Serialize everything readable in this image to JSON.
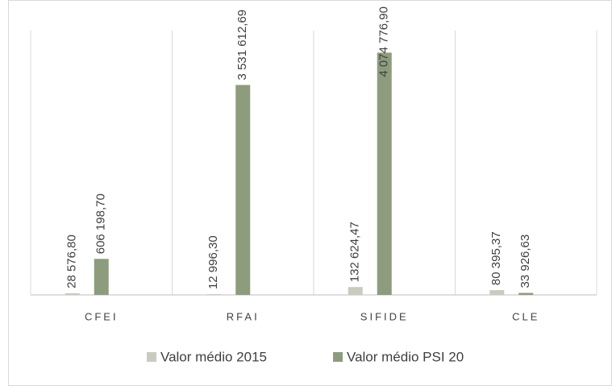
{
  "chart_data": {
    "type": "bar",
    "categories": [
      "CFEI",
      "RFAI",
      "SIFIDE",
      "CLE"
    ],
    "series": [
      {
        "name": "Valor médio 2015",
        "color": "#c9cbc0",
        "values": [
          28576.8,
          12996.3,
          132624.47,
          80395.37
        ],
        "value_labels": [
          "28 576,80",
          "12 996,30",
          "132 624,47",
          "80 395,37"
        ]
      },
      {
        "name": "Valor médio PSI 20",
        "color": "#8e9c7e",
        "values": [
          606198.7,
          3531612.69,
          4074776.9,
          33926.63
        ],
        "value_labels": [
          "606 198,70",
          "3 531 612,69",
          "4 074 776,90",
          "33 926,63"
        ]
      }
    ],
    "ylim": [
      0,
      4500000
    ],
    "legend": "bottom"
  }
}
